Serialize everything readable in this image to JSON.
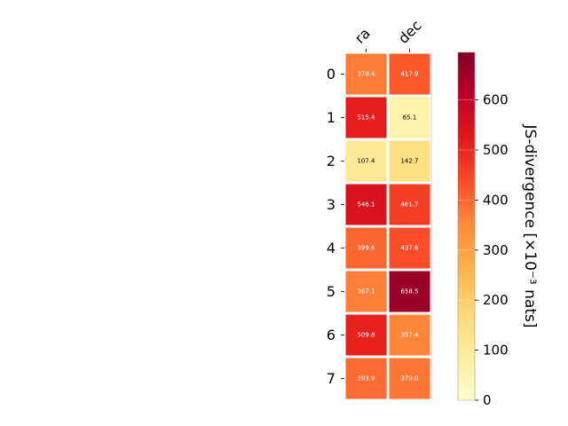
{
  "chart_data": {
    "type": "heatmap",
    "columns": [
      "ra",
      "dec"
    ],
    "rows": [
      "0",
      "1",
      "2",
      "3",
      "4",
      "5",
      "6",
      "7"
    ],
    "values": [
      [
        370.4,
        417.9
      ],
      [
        515.4,
        65.1
      ],
      [
        107.4,
        142.7
      ],
      [
        546.1,
        461.7
      ],
      [
        399.6,
        437.6
      ],
      [
        367.1,
        658.5
      ],
      [
        509.8,
        357.4
      ],
      [
        393.9,
        379.0
      ]
    ],
    "value_labels": [
      [
        "370.4",
        "417.9"
      ],
      [
        "515.4",
        "65.1"
      ],
      [
        "107.4",
        "142.7"
      ],
      [
        "546.1",
        "461.7"
      ],
      [
        "399.6",
        "437.6"
      ],
      [
        "367.1",
        "658.5"
      ],
      [
        "509.8",
        "357.4"
      ],
      [
        "393.9",
        "379.0"
      ]
    ],
    "colorbar": {
      "label": "JS-divergence [×10⁻³ nats]",
      "range": [
        0,
        695
      ],
      "ticks": [
        0,
        100,
        200,
        300,
        400,
        500,
        600
      ],
      "tick_labels": [
        "0",
        "100",
        "200",
        "300",
        "400",
        "500",
        "600"
      ],
      "colormap": "YlOrRd"
    }
  }
}
